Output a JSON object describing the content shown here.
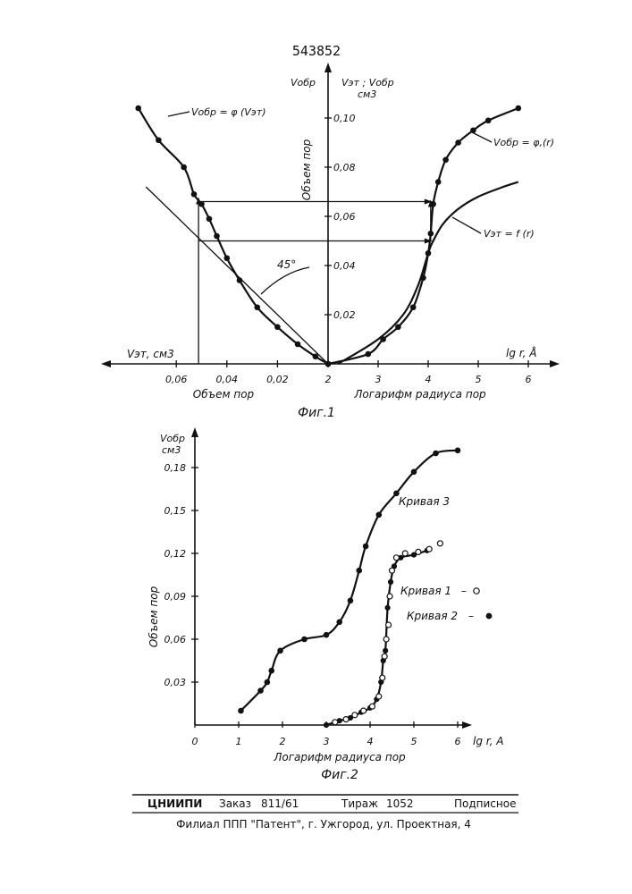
{
  "header": {
    "patent_number": "543852"
  },
  "chart_data": [
    {
      "type": "line",
      "figure_label": "Фиг.1",
      "left_axis": {
        "label": "Vэт, см3",
        "title": "Объем пор",
        "ticks": [
          0.06,
          0.04,
          0.02
        ],
        "tick_labels": [
          "0,06",
          "0,04",
          "0,02"
        ]
      },
      "right_axis": {
        "label": "Логарифм радиуса пор",
        "unit_label": "lg r, Å",
        "ticks": [
          2,
          3,
          4,
          5,
          6
        ]
      },
      "y_axis": {
        "labels": [
          "Vэт ; Vобр",
          "см3",
          "Vобр"
        ],
        "title": "Объем пор",
        "ticks": [
          0.02,
          0.04,
          0.06,
          0.08,
          0.1
        ],
        "tick_labels": [
          "0,02",
          "0,04",
          "0,06",
          "0,08",
          "0,10"
        ]
      },
      "angle_label": "45°",
      "series": [
        {
          "name": "Vобр = φ (Vэт)",
          "x_vet": [
            0.075,
            0.067,
            0.057,
            0.053,
            0.05,
            0.047,
            0.044,
            0.04,
            0.035,
            0.028,
            0.02,
            0.012,
            0.005,
            0.0
          ],
          "y": [
            0.104,
            0.091,
            0.08,
            0.069,
            0.065,
            0.059,
            0.052,
            0.043,
            0.034,
            0.023,
            0.015,
            0.008,
            0.003,
            0.0
          ]
        },
        {
          "name": "Vобр = φ,(r)",
          "x": [
            2.0,
            2.8,
            3.1,
            3.4,
            3.7,
            3.9,
            4.0,
            4.05,
            4.1,
            4.2,
            4.35,
            4.6,
            4.9,
            5.2,
            5.8
          ],
          "y": [
            0.0,
            0.004,
            0.01,
            0.015,
            0.023,
            0.035,
            0.045,
            0.053,
            0.065,
            0.074,
            0.083,
            0.09,
            0.095,
            0.099,
            0.104
          ]
        },
        {
          "name": "Vэт = f (r)",
          "x": [
            2.2,
            3.0,
            3.5,
            3.8,
            4.0,
            4.1,
            4.3,
            4.6,
            5.0,
            5.5,
            5.8
          ],
          "y": [
            0.0,
            0.01,
            0.02,
            0.032,
            0.045,
            0.05,
            0.057,
            0.063,
            0.068,
            0.072,
            0.074
          ]
        }
      ]
    },
    {
      "type": "line",
      "figure_label": "Фиг.2",
      "x_axis": {
        "label": "Логарифм радиуса пор",
        "unit_label": "lg r, A",
        "ticks": [
          0,
          1,
          2,
          3,
          4,
          5,
          6
        ]
      },
      "y_axis": {
        "label_top": "Vобр",
        "label_unit": "см3",
        "title": "Объем пор",
        "ticks": [
          0.03,
          0.06,
          0.09,
          0.12,
          0.15,
          0.18
        ],
        "tick_labels": [
          "0,03",
          "0,06",
          "0,09",
          "0,12",
          "0,15",
          "0,18"
        ]
      },
      "series": [
        {
          "name": "Кривая 3",
          "x": [
            1.05,
            1.5,
            1.65,
            1.75,
            1.95,
            2.5,
            3.0,
            3.3,
            3.55,
            3.75,
            3.9,
            4.2,
            4.6,
            5.0,
            5.5,
            6.0
          ],
          "y": [
            0.01,
            0.024,
            0.03,
            0.038,
            0.052,
            0.06,
            0.063,
            0.072,
            0.087,
            0.108,
            0.125,
            0.147,
            0.162,
            0.177,
            0.19,
            0.192
          ]
        },
        {
          "name": "Кривая 1",
          "marker": "○",
          "x": [
            3.2,
            3.45,
            3.65,
            3.85,
            4.05,
            4.2,
            4.28,
            4.33,
            4.37,
            4.42,
            4.45,
            4.5,
            4.6,
            4.8,
            5.1,
            5.35,
            5.6
          ],
          "y": [
            0.002,
            0.004,
            0.007,
            0.01,
            0.013,
            0.02,
            0.033,
            0.048,
            0.06,
            0.07,
            0.09,
            0.108,
            0.117,
            0.12,
            0.121,
            0.123,
            0.127
          ]
        },
        {
          "name": "Кривая 2",
          "marker": "●",
          "x": [
            3.0,
            3.3,
            3.55,
            3.8,
            4.0,
            4.15,
            4.25,
            4.3,
            4.35,
            4.4,
            4.47,
            4.55,
            4.7,
            5.0,
            5.3
          ],
          "y": [
            0.0,
            0.003,
            0.005,
            0.009,
            0.012,
            0.018,
            0.03,
            0.045,
            0.052,
            0.082,
            0.1,
            0.111,
            0.117,
            0.119,
            0.122
          ]
        }
      ]
    }
  ],
  "footer": {
    "org": "ЦНИИПИ",
    "order_label": "Заказ",
    "order_value": "811/61",
    "circulation_label": "Тираж",
    "circulation_value": "1052",
    "subscription": "Подписное",
    "branch": "Филиал ППП \"Патент\", г. Ужгород, ул. Проектная, 4"
  }
}
